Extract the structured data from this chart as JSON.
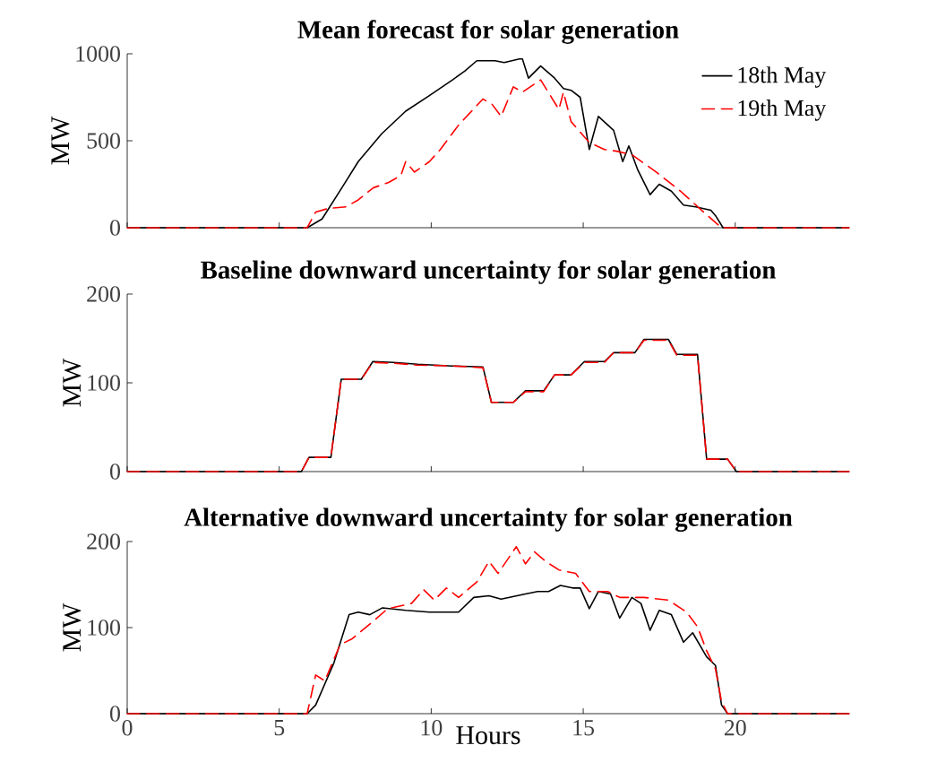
{
  "chart_data": [
    {
      "type": "line",
      "title": "Mean forecast for solar generation",
      "ylabel": "MW",
      "xlim": [
        0,
        23.75
      ],
      "ylim": [
        0,
        1000
      ],
      "xticks": [
        0,
        5,
        10,
        15,
        20
      ],
      "yticks": [
        0,
        500,
        1000
      ],
      "tick_labels": "y",
      "legend": "top right",
      "series": [
        {
          "name": "18th May",
          "color": "#000000",
          "line_style": "solid",
          "x": [
            0,
            5.92,
            6.41,
            7.1,
            7.6,
            8.37,
            9.16,
            9.94,
            10.7,
            11.1,
            11.5,
            12.1,
            12.4,
            12.9,
            13.0,
            13.2,
            13.6,
            14.06,
            14.35,
            14.6,
            14.9,
            15.2,
            15.5,
            16.0,
            16.3,
            16.5,
            16.8,
            17.2,
            17.5,
            17.9,
            18.3,
            18.7,
            19.2,
            19.35,
            19.6,
            23.75
          ],
          "values": [
            0,
            0,
            50,
            240,
            380,
            540,
            670,
            760,
            850,
            900,
            960,
            960,
            950,
            970,
            970,
            860,
            930,
            860,
            800,
            790,
            750,
            450,
            640,
            560,
            380,
            470,
            330,
            190,
            250,
            210,
            130,
            120,
            100,
            70,
            0,
            0
          ]
        },
        {
          "name": "19th May",
          "color": "#ff0000",
          "line_style": "dashed",
          "x": [
            0,
            5.92,
            6.2,
            6.6,
            7.2,
            7.6,
            8.1,
            8.6,
            9.0,
            9.16,
            9.45,
            9.94,
            10.3,
            10.9,
            11.7,
            12.0,
            12.3,
            12.7,
            13.0,
            13.6,
            14.2,
            14.35,
            14.6,
            15.2,
            15.7,
            16.1,
            16.6,
            17.4,
            18.2,
            18.96,
            19.55,
            23.75
          ],
          "values": [
            0,
            0,
            90,
            110,
            120,
            160,
            230,
            260,
            300,
            380,
            320,
            380,
            450,
            590,
            740,
            710,
            640,
            810,
            780,
            850,
            680,
            780,
            610,
            490,
            450,
            440,
            420,
            320,
            210,
            90,
            0,
            0
          ]
        }
      ]
    },
    {
      "type": "line",
      "title": "Baseline downward uncertainty for solar generation",
      "ylabel": "MW",
      "xlim": [
        0,
        23.75
      ],
      "ylim": [
        0,
        200
      ],
      "xticks": [
        0,
        5,
        10,
        15,
        20
      ],
      "yticks": [
        0,
        100,
        200
      ],
      "tick_labels": "y",
      "series": [
        {
          "color": "#000000",
          "line_style": "solid",
          "x": [
            0,
            5.73,
            5.98,
            6.7,
            7.04,
            7.7,
            8.08,
            8.76,
            9.55,
            10.7,
            11.7,
            11.98,
            12.7,
            13.1,
            13.7,
            14.06,
            14.6,
            15.04,
            15.7,
            16.0,
            16.7,
            17.0,
            17.8,
            18.08,
            18.76,
            19.06,
            19.75,
            20.04,
            23.75
          ],
          "values": [
            0,
            0,
            16,
            16,
            104,
            104,
            124,
            123,
            121,
            119,
            118,
            78,
            78,
            91,
            91,
            109,
            109,
            124,
            124,
            134,
            134,
            149,
            149,
            132,
            132,
            14,
            14,
            0,
            0
          ]
        },
        {
          "color": "#ff0000",
          "line_style": "dashed",
          "x": [
            0,
            5.73,
            5.98,
            6.7,
            7.04,
            7.7,
            8.08,
            8.76,
            9.55,
            10.7,
            11.7,
            11.98,
            12.7,
            13.1,
            13.7,
            14.06,
            14.6,
            15.04,
            15.7,
            16.0,
            16.7,
            17.0,
            17.8,
            18.08,
            18.76,
            19.06,
            19.75,
            20.04,
            23.75
          ],
          "values": [
            0,
            0,
            16,
            16,
            104,
            104,
            123,
            122,
            120,
            119,
            117,
            78,
            78,
            90,
            90,
            109,
            109,
            123,
            123,
            134,
            134,
            148,
            148,
            131,
            131,
            14,
            14,
            0,
            0
          ]
        }
      ]
    },
    {
      "type": "line",
      "title": "Alternative downward uncertainty for solar generation",
      "xlabel": "Hours",
      "ylabel": "MW",
      "xlim": [
        0,
        23.75
      ],
      "ylim": [
        0,
        200
      ],
      "xticks": [
        0,
        5,
        10,
        15,
        20
      ],
      "yticks": [
        0,
        100,
        200
      ],
      "series": [
        {
          "color": "#000000",
          "line_style": "solid",
          "x": [
            0,
            5.92,
            6.2,
            6.8,
            7.3,
            7.6,
            7.98,
            8.4,
            9.16,
            9.94,
            10.9,
            11.4,
            11.9,
            12.3,
            13.1,
            13.5,
            13.86,
            14.25,
            14.65,
            14.9,
            15.2,
            15.5,
            15.9,
            16.2,
            16.6,
            16.9,
            17.2,
            17.5,
            17.9,
            18.3,
            18.6,
            19.06,
            19.35,
            19.55,
            19.75,
            23.75
          ],
          "values": [
            0,
            0,
            10,
            59,
            115,
            118,
            115,
            123,
            120,
            118,
            118,
            135,
            137,
            133,
            139,
            142,
            142,
            149,
            146,
            146,
            122,
            142,
            139,
            111,
            135,
            128,
            97,
            120,
            115,
            83,
            94,
            66,
            56,
            10,
            0,
            0
          ]
        },
        {
          "color": "#ff0000",
          "line_style": "dashed",
          "x": [
            0,
            5.92,
            6.2,
            6.5,
            7.0,
            7.4,
            7.98,
            8.57,
            9.35,
            9.75,
            10.1,
            10.5,
            10.9,
            11.5,
            11.9,
            12.2,
            12.8,
            13.1,
            13.4,
            13.76,
            14.2,
            14.75,
            15.2,
            15.8,
            16.2,
            17.0,
            17.8,
            18.4,
            18.76,
            19.06,
            19.35,
            19.55,
            19.75,
            23.75
          ],
          "values": [
            0,
            0,
            45,
            38,
            80,
            87,
            104,
            122,
            128,
            144,
            132,
            146,
            135,
            153,
            177,
            163,
            194,
            174,
            188,
            177,
            167,
            163,
            142,
            142,
            135,
            135,
            132,
            118,
            101,
            73,
            52,
            14,
            0,
            0
          ]
        }
      ]
    }
  ]
}
